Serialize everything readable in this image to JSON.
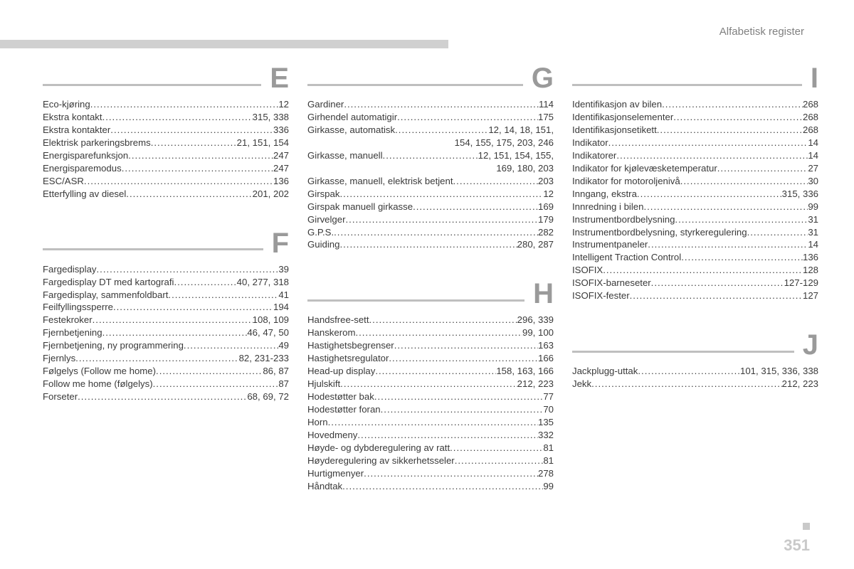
{
  "header": {
    "label": "Alfabetisk register"
  },
  "page_number": "351",
  "colors": {
    "topbar": "#d0d0d0",
    "sec_bar": "#bfbfbf",
    "letter": "#9a9a9a",
    "text": "#3a3a3a",
    "header_text": "#808080",
    "pagenum": "#c9c9c9",
    "background": "#ffffff"
  },
  "fonts": {
    "body_size_pt": 10,
    "letter_size_pt": 30,
    "letter_weight": "bold"
  },
  "columns": [
    {
      "sections": [
        {
          "letter": "E",
          "entries": [
            {
              "label": "Eco-kjøring",
              "pages": "12"
            },
            {
              "label": "Ekstra kontakt",
              "pages": "315, 338"
            },
            {
              "label": "Ekstra kontakter",
              "pages": "336"
            },
            {
              "label": "Elektrisk parkeringsbrems",
              "pages": "21, 151, 154"
            },
            {
              "label": "Energisparefunksjon",
              "pages": "247"
            },
            {
              "label": "Energisparemodus",
              "pages": "247"
            },
            {
              "label": "ESC/ASR",
              "pages": "136"
            },
            {
              "label": "Etterfylling av diesel",
              "pages": "201, 202"
            }
          ]
        },
        {
          "letter": "F",
          "entries": [
            {
              "label": "Fargedisplay",
              "pages": "39"
            },
            {
              "label": "Fargedisplay DT med kartografi",
              "pages": "40, 277, 318"
            },
            {
              "label": "Fargedisplay, sammenfoldbart",
              "pages": "41"
            },
            {
              "label": "Feilfyllingssperre",
              "pages": "194"
            },
            {
              "label": "Festekroker",
              "pages": "108, 109"
            },
            {
              "label": "Fjernbetjening",
              "pages": "46, 47, 50"
            },
            {
              "label": "Fjernbetjening, ny programmering",
              "pages": "49"
            },
            {
              "label": "Fjernlys",
              "pages": "82, 231-233"
            },
            {
              "label": "Følgelys (Follow me home)",
              "pages": "86, 87"
            },
            {
              "label": "Follow me home (følgelys)",
              "pages": "87"
            },
            {
              "label": "Forseter",
              "pages": "68, 69, 72"
            }
          ]
        }
      ]
    },
    {
      "sections": [
        {
          "letter": "G",
          "entries": [
            {
              "label": "Gardiner",
              "pages": "114"
            },
            {
              "label": "Girhendel automatigir",
              "pages": "175"
            },
            {
              "label": "Girkasse, automatisk",
              "pages": "12, 14, 18, 151,",
              "cont": "154, 155, 175, 203, 246"
            },
            {
              "label": "Girkasse, manuell",
              "pages": "12, 151, 154, 155,",
              "cont": "169, 180, 203"
            },
            {
              "label": "Girkasse, manuell, elektrisk betjent",
              "pages": "203"
            },
            {
              "label": "Girspak",
              "pages": "12"
            },
            {
              "label": "Girspak manuell girkasse",
              "pages": "169"
            },
            {
              "label": "Girvelger",
              "pages": "179"
            },
            {
              "label": "G.P.S.",
              "pages": "282"
            },
            {
              "label": "Guiding",
              "pages": "280, 287"
            }
          ]
        },
        {
          "letter": "H",
          "entries": [
            {
              "label": "Handsfree-sett",
              "pages": "296, 339"
            },
            {
              "label": "Hanskerom",
              "pages": "99, 100"
            },
            {
              "label": "Hastighetsbegrenser",
              "pages": "163"
            },
            {
              "label": "Hastighetsregulator",
              "pages": "166"
            },
            {
              "label": "Head-up display",
              "pages": "158, 163, 166"
            },
            {
              "label": "Hjulskift",
              "pages": "212, 223"
            },
            {
              "label": "Hodestøtter bak",
              "pages": "77"
            },
            {
              "label": "Hodestøtter foran",
              "pages": "70"
            },
            {
              "label": "Horn",
              "pages": "135"
            },
            {
              "label": "Hovedmeny",
              "pages": "332"
            },
            {
              "label": "Høyde- og dybderegulering av ratt",
              "pages": "81"
            },
            {
              "label": "Høyderegulering av sikkerhetsseler",
              "pages": "81"
            },
            {
              "label": "Hurtigmenyer",
              "pages": "278"
            },
            {
              "label": "Håndtak",
              "pages": "99"
            }
          ]
        }
      ]
    },
    {
      "sections": [
        {
          "letter": "I",
          "entries": [
            {
              "label": "Identifikasjon av bilen",
              "pages": "268"
            },
            {
              "label": "Identifikasjonselementer",
              "pages": "268"
            },
            {
              "label": "Identifikasjonsetikett",
              "pages": "268"
            },
            {
              "label": "Indikator",
              "pages": "14"
            },
            {
              "label": "Indikatorer",
              "pages": "14"
            },
            {
              "label": "Indikator for kjølevæsketemperatur",
              "pages": "27"
            },
            {
              "label": "Indikator for motoroljenivå",
              "pages": "30"
            },
            {
              "label": "Inngang, ekstra",
              "pages": "315, 336"
            },
            {
              "label": "Innredning i bilen",
              "pages": "99"
            },
            {
              "label": "Instrumentbordbelysning",
              "pages": "31"
            },
            {
              "label": "Instrumentbordbelysning, styrkeregulering",
              "pages": "31"
            },
            {
              "label": "Instrumentpaneler",
              "pages": "14"
            },
            {
              "label": "Intelligent Traction Control",
              "pages": "136"
            },
            {
              "label": "ISOFIX",
              "pages": "128"
            },
            {
              "label": "ISOFIX-barneseter",
              "pages": "127-129"
            },
            {
              "label": "ISOFIX-fester",
              "pages": "127"
            }
          ]
        },
        {
          "letter": "J",
          "entries": [
            {
              "label": "Jackplugg-uttak",
              "pages": "101, 315, 336, 338"
            },
            {
              "label": "Jekk",
              "pages": "212, 223"
            }
          ]
        }
      ]
    }
  ]
}
